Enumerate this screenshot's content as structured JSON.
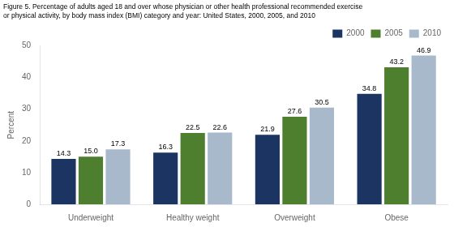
{
  "chart_data": {
    "type": "bar",
    "title": "Figure 5. Percentage of adults aged 18 and over whose physician or other health professional recommended exercise\nor physical activity, by body mass index (BMI) category and year: United States, 2000, 2005, and 2010",
    "categories": [
      "Underweight",
      "Healthy weight",
      "Overweight",
      "Obese"
    ],
    "series": [
      {
        "name": "2000",
        "color": "#1c3461",
        "values": [
          14.3,
          16.3,
          21.9,
          34.8
        ],
        "value_labels": [
          "14.3",
          "16.3",
          "21.9",
          "34.8"
        ]
      },
      {
        "name": "2005",
        "color": "#4e7f2e",
        "values": [
          15.0,
          22.5,
          27.6,
          43.2
        ],
        "value_labels": [
          "15.0",
          "22.5",
          "27.6",
          "43.2"
        ]
      },
      {
        "name": "2010",
        "color": "#a8b9cc",
        "values": [
          17.3,
          22.6,
          30.5,
          46.9
        ],
        "value_labels": [
          "17.3",
          "22.6",
          "30.5",
          "46.9"
        ]
      }
    ],
    "y_label": "Percent",
    "ylim": [
      0,
      50
    ],
    "yticks": [
      0,
      10,
      20,
      30,
      40,
      50
    ],
    "grid": false,
    "legend": "upper right",
    "data_labels": true
  }
}
